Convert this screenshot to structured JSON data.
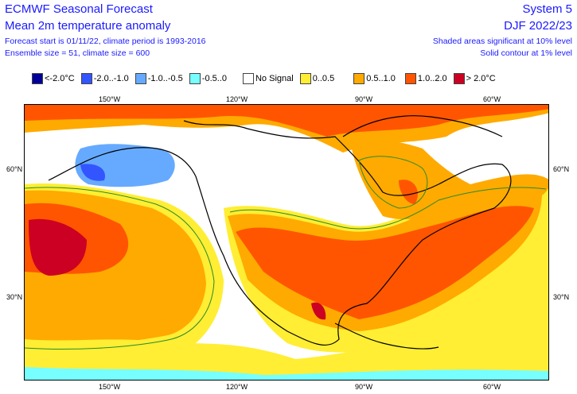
{
  "header": {
    "title": "ECMWF Seasonal Forecast",
    "subtitle": "Mean 2m temperature anomaly",
    "info1": "Forecast start is 01/11/22, climate period is 1993-2016",
    "info2": "Ensemble size = 51, climate size = 600",
    "system": "System 5",
    "season": "DJF 2022/23",
    "sig1": "Shaded areas significant at 10% level",
    "sig2": "Solid contour at 1% level"
  },
  "legend": [
    {
      "label": "<-2.0°C",
      "color": "#000099"
    },
    {
      "label": "-2.0..-1.0",
      "color": "#3355ff"
    },
    {
      "label": "-1.0..-0.5",
      "color": "#66aaff"
    },
    {
      "label": "-0.5..0",
      "color": "#77ffff"
    },
    {
      "label": "No Signal",
      "color": "#ffffff"
    },
    {
      "label": "0..0.5",
      "color": "#ffee33"
    },
    {
      "label": "0.5..1.0",
      "color": "#ffaa00"
    },
    {
      "label": "1.0..2.0",
      "color": "#ff5500"
    },
    {
      "label": "> 2.0°C",
      "color": "#cc0022"
    }
  ],
  "axes": {
    "lon": [
      "150°W",
      "120°W",
      "90°W",
      "60°W"
    ],
    "lat": [
      "60°N",
      "30°N"
    ]
  }
}
